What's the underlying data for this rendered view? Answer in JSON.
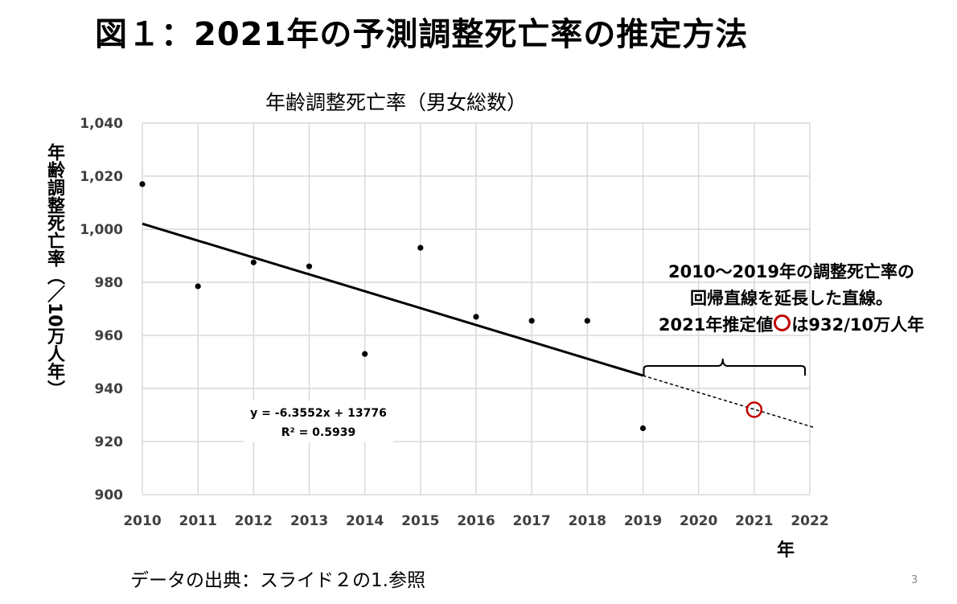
{
  "slide": {
    "title": "図１：2021年の予測調整死亡率の推定方法",
    "source_note": "データの出典：スライド２の1.参照",
    "page_number": "3"
  },
  "chart_data": {
    "type": "scatter",
    "title": "年齢調整死亡率（男女総数）",
    "xlabel": "年",
    "ylabel": "年齢調整死亡率（／10万人年）",
    "xlim": [
      2010,
      2022
    ],
    "ylim": [
      900,
      1040
    ],
    "x_ticks": [
      2010,
      2011,
      2012,
      2013,
      2014,
      2015,
      2016,
      2017,
      2018,
      2019,
      2020,
      2021,
      2022
    ],
    "x_tick_labels": [
      "2010",
      "2011",
      "2012",
      "2013",
      "2014",
      "2015",
      "2016",
      "2017",
      "2018",
      "2019",
      "2020",
      "2021",
      "2022"
    ],
    "y_ticks": [
      900,
      920,
      940,
      960,
      980,
      1000,
      1020,
      1040
    ],
    "y_tick_labels": [
      "900",
      "920",
      "940",
      "960",
      "980",
      "1,000",
      "1,020",
      "1,040"
    ],
    "grid": true,
    "series": [
      {
        "x": [
          2010,
          2011,
          2012,
          2013,
          2014,
          2015,
          2016,
          2017,
          2018,
          2019
        ],
        "y": [
          1017,
          978.5,
          987.5,
          986,
          953,
          993,
          967,
          965.5,
          965.5,
          925
        ],
        "color": "#000000"
      }
    ],
    "trendline": {
      "slope": -6.3552,
      "intercept": 13776,
      "equation": "y = -6.3552x + 13776",
      "r_squared": "R² = 0.5939",
      "solid_range": [
        2010,
        2019
      ],
      "dashed_range": [
        2019,
        2022.1
      ],
      "color": "#000000"
    },
    "highlight_point": {
      "x": 2021,
      "y": 932,
      "color": "#c00000"
    },
    "annotation": {
      "line1": "2010～2019年の調整死亡率の",
      "line2": "回帰直線を延長した直線。",
      "line3_prefix": "2021年推定値",
      "line3_suffix": "は932/10万人年",
      "brace_range": [
        2019,
        2022
      ]
    }
  }
}
